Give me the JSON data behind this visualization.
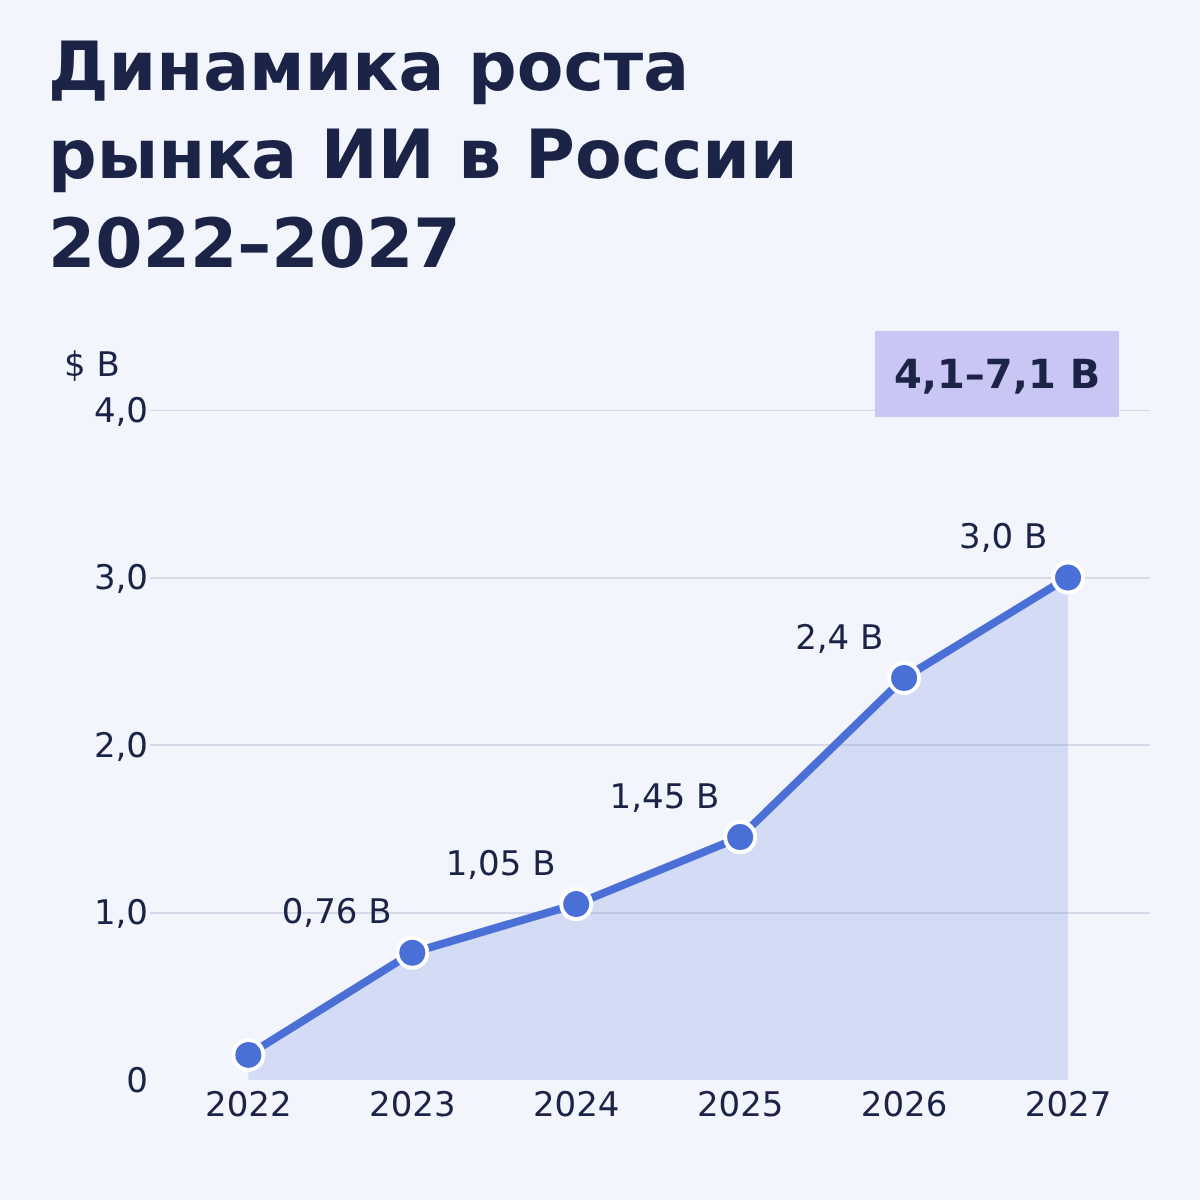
{
  "chart_data": {
    "type": "area",
    "title": "Динамика роста\nрынка ИИ в России\n2022–2027",
    "ylabel": "$ B",
    "categories": [
      "2022",
      "2023",
      "2024",
      "2025",
      "2026",
      "2027"
    ],
    "series": [
      {
        "color": "#4a6fd6",
        "values": [
          0.15,
          0.76,
          1.05,
          1.45,
          2.4,
          3.0
        ],
        "value_labels": [
          null,
          "0,76 B",
          "1,05 B",
          "1,45 B",
          "2,4 B",
          "3,0 B"
        ]
      }
    ],
    "ylim": [
      0,
      4
    ],
    "yticks": [
      0,
      {
        "value": 1,
        "label": "1,0"
      },
      {
        "value": 2,
        "label": "2,0"
      },
      {
        "value": 3,
        "label": "3,0"
      },
      {
        "value": 4,
        "label": "4,0"
      }
    ],
    "grid": "y",
    "marker": "circle",
    "legend": false,
    "annotations": [
      "4,1–7,1 B"
    ]
  }
}
